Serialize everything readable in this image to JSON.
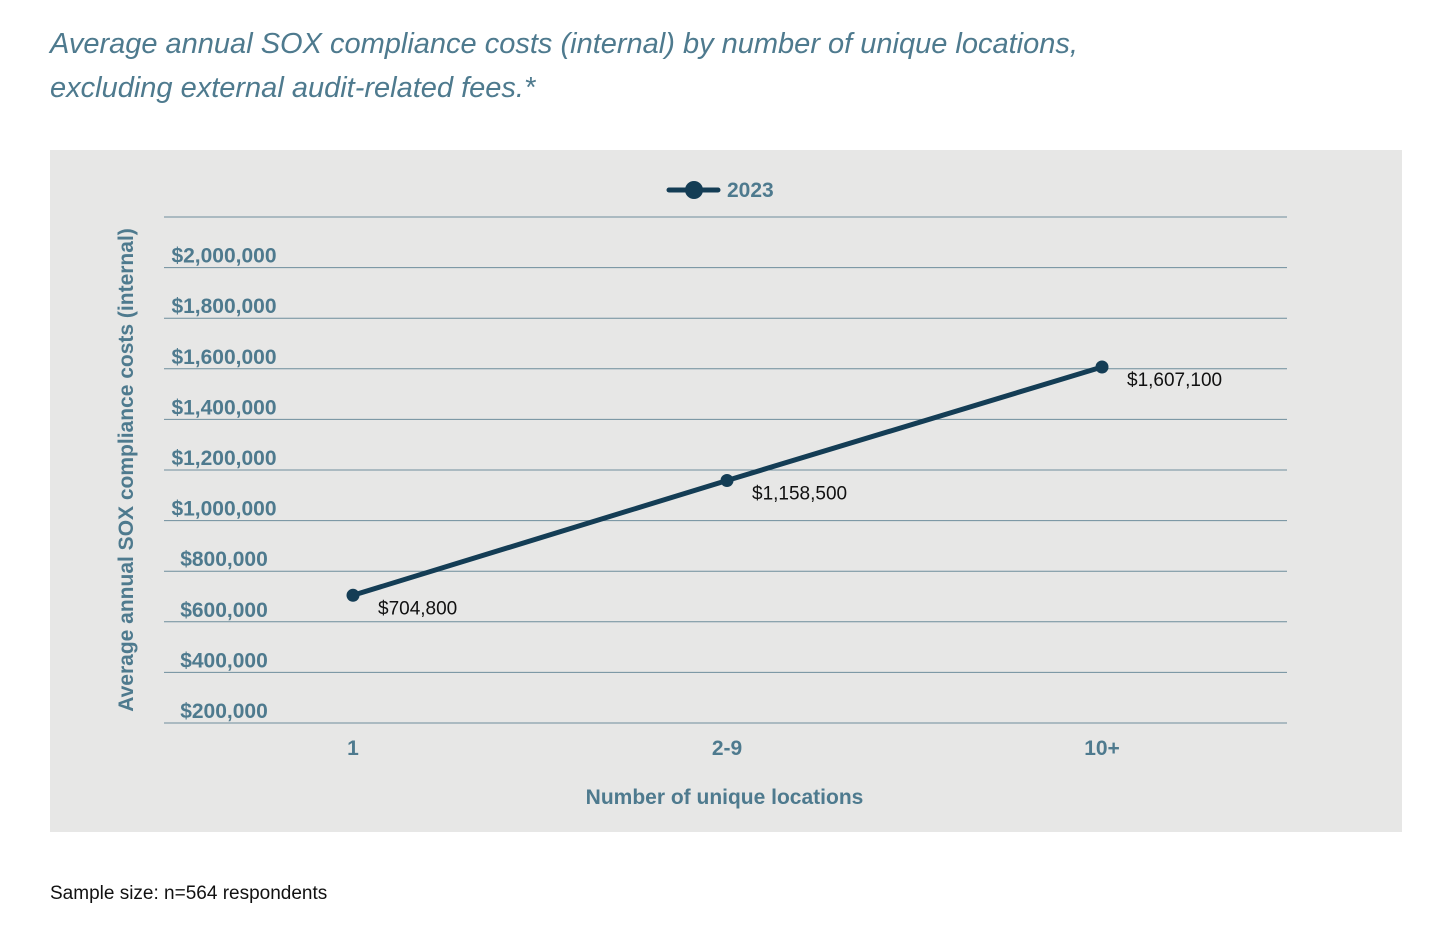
{
  "chart_data": {
    "type": "line",
    "title": "Average annual SOX compliance costs (internal) by number of unique locations, excluding external audit-related fees.*",
    "xlabel": "Number of unique locations",
    "ylabel": "Average annual SOX compliance costs (internal)",
    "categories": [
      "1",
      "2-9",
      "10+"
    ],
    "series": [
      {
        "name": "2023",
        "values": [
          704800,
          1158500,
          1607100
        ],
        "data_labels": [
          "$704,800",
          "$1,158,500",
          "$1,607,100"
        ],
        "color": "#143d55"
      }
    ],
    "y_ticks": [
      200000,
      400000,
      600000,
      800000,
      1000000,
      1200000,
      1400000,
      1600000,
      1800000,
      2000000
    ],
    "y_tick_labels": [
      "$200,000",
      "$400,000",
      "$600,000",
      "$800,000",
      "$1,000,000",
      "$1,200,000",
      "$1,400,000",
      "$1,600,000",
      "$1,800,000",
      "$2,000,000"
    ],
    "ylim": [
      200000,
      2200000
    ],
    "grid": true,
    "legend_position": "top-center"
  },
  "footnote": "Sample size: n=564 respondents",
  "colors": {
    "panel_background": "#e7e7e6",
    "accent_text": "#4e7a8e",
    "line": "#143d55",
    "gridline": "#6f8e9c"
  }
}
